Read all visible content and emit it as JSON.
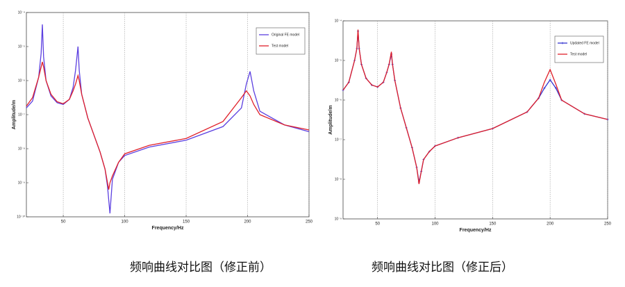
{
  "chart_data": [
    {
      "type": "line",
      "xlabel": "Frequency/Hz",
      "ylabel": "Amplitude/m",
      "yscale": "log",
      "grid": true,
      "legend": "upper right",
      "xlim": [
        20,
        250
      ],
      "xticks": [
        50,
        100,
        150,
        200,
        250
      ],
      "ylim": [
        1e-10,
        0.0001
      ],
      "yticks": [
        {
          "value": 1e-10,
          "label": "10⁻¹⁰"
        },
        {
          "value": 1e-09,
          "label": "10⁻⁹"
        },
        {
          "value": 1e-08,
          "label": "10⁻⁸"
        },
        {
          "value": 1e-07,
          "label": "10⁻⁷"
        },
        {
          "value": 1e-06,
          "label": "10⁻⁶"
        },
        {
          "value": 1e-05,
          "label": "10⁻⁵"
        },
        {
          "value": 0.0001,
          "label": "10⁻⁴"
        }
      ],
      "x": [
        20,
        25,
        30,
        32,
        33,
        34,
        36,
        40,
        45,
        50,
        55,
        58,
        60,
        62,
        63,
        65,
        70,
        75,
        80,
        84,
        86,
        87,
        88,
        90,
        95,
        100,
        120,
        150,
        180,
        195,
        199,
        202,
        205,
        210,
        230,
        250
      ],
      "series": [
        {
          "name": "Original FE model",
          "color": "#5b3fe0",
          "values": [
            1.58e-07,
            2.51e-07,
            1.26e-06,
            6.31e-06,
            4.47e-05,
            5.01e-06,
            1e-06,
            3.55e-07,
            2.24e-07,
            2e-07,
            2.82e-07,
            6.31e-07,
            2e-06,
            1e-05,
            2e-06,
            3.98e-07,
            7.94e-08,
            2.51e-08,
            7.94e-09,
            2.51e-09,
            7.94e-10,
            3.16e-10,
            1.26e-10,
            1.26e-09,
            3.98e-09,
            6.31e-09,
            1.12e-08,
            1.78e-08,
            4.47e-08,
            1.58e-07,
            7.94e-07,
            1.86e-06,
            5.01e-07,
            1.26e-07,
            5.01e-08,
            3.16e-08
          ]
        },
        {
          "name": "Test model",
          "color": "#e0202a",
          "values": [
            1.78e-07,
            3.16e-07,
            1.26e-06,
            2.51e-06,
            3.55e-06,
            2.51e-06,
            1e-06,
            3.98e-07,
            2.4e-07,
            2.09e-07,
            2.82e-07,
            5.01e-07,
            7.94e-07,
            1.41e-06,
            1e-06,
            3.98e-07,
            7.94e-08,
            2.51e-08,
            7.94e-09,
            2.51e-09,
            1e-09,
            6.31e-10,
            1e-09,
            1.58e-09,
            3.98e-09,
            7.08e-09,
            1.26e-08,
            2e-08,
            6.31e-08,
            3.16e-07,
            5.01e-07,
            3.55e-07,
            2e-07,
            1e-07,
            5.01e-08,
            3.55e-08
          ]
        }
      ],
      "caption": "频响曲线对比图（修正前）"
    },
    {
      "type": "line",
      "xlabel": "Frequency/Hz",
      "ylabel": "Amplitude/m",
      "yscale": "log",
      "grid": true,
      "legend": "upper right",
      "xlim": [
        20,
        250
      ],
      "xticks": [
        50,
        100,
        150,
        200,
        250
      ],
      "ylim": [
        1e-09,
        0.0001
      ],
      "yticks": [
        {
          "value": 1e-09,
          "label": "10⁻⁹"
        },
        {
          "value": 1e-08,
          "label": "10⁻⁸"
        },
        {
          "value": 1e-07,
          "label": "10⁻⁷"
        },
        {
          "value": 1e-06,
          "label": "10⁻⁶"
        },
        {
          "value": 1e-05,
          "label": "10⁻⁵"
        },
        {
          "value": 0.0001,
          "label": "10⁻⁴"
        }
      ],
      "x": [
        20,
        25,
        30,
        32,
        33,
        34,
        36,
        40,
        45,
        50,
        55,
        58,
        60,
        62,
        63,
        65,
        70,
        75,
        80,
        84,
        86,
        88,
        90,
        95,
        100,
        120,
        150,
        180,
        190,
        195,
        200,
        205,
        210,
        230,
        250
      ],
      "series": [
        {
          "name": "Updated FE model",
          "color": "#3434d0",
          "marker": "plus",
          "values": [
            1.78e-06,
            2.82e-06,
            1e-05,
            2e-05,
            5.5e-05,
            2e-05,
            7.94e-06,
            3.55e-06,
            2.4e-06,
            2.14e-06,
            2.82e-06,
            5.01e-06,
            7.94e-06,
            1.45e-05,
            7.94e-06,
            3.16e-06,
            6.31e-07,
            2e-07,
            6.31e-08,
            2e-08,
            8.51e-09,
            1.58e-08,
            3.16e-08,
            5.01e-08,
            6.92e-08,
            1.12e-07,
            1.91e-07,
            5.01e-07,
            1.12e-06,
            2e-06,
            3.24e-06,
            2e-06,
            1e-06,
            4.47e-07,
            3.24e-07
          ]
        },
        {
          "name": "Test model",
          "color": "#e0202a",
          "values": [
            1.78e-06,
            2.82e-06,
            1e-05,
            2e-05,
            6.03e-05,
            2e-05,
            7.94e-06,
            3.55e-06,
            2.4e-06,
            2.14e-06,
            2.82e-06,
            5.01e-06,
            7.94e-06,
            1.66e-05,
            7.94e-06,
            3.16e-06,
            6.31e-07,
            2e-07,
            6.31e-08,
            2e-08,
            7.59e-09,
            1.58e-08,
            3.16e-08,
            5.01e-08,
            6.92e-08,
            1.12e-07,
            1.91e-07,
            5.01e-07,
            1.12e-06,
            2.82e-06,
            5.89e-06,
            2.51e-06,
            1e-06,
            4.47e-07,
            3.24e-07
          ]
        }
      ],
      "caption": "频响曲线对比图（修正后）"
    }
  ]
}
